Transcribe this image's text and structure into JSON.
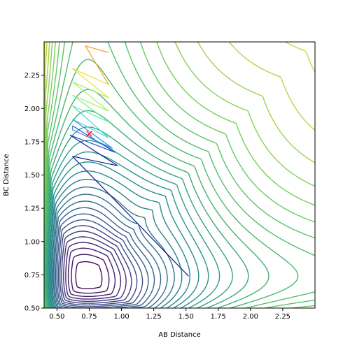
{
  "chart_data": {
    "type": "contour",
    "title": "",
    "xlabel": "AB Distance",
    "ylabel": "BC Distance",
    "xlim": [
      0.4,
      2.5
    ],
    "ylim": [
      0.5,
      2.5
    ],
    "x_ticks": [
      "0.50",
      "0.75",
      "1.00",
      "1.25",
      "1.50",
      "1.75",
      "2.00",
      "2.25"
    ],
    "x_tick_values": [
      0.5,
      0.75,
      1.0,
      1.25,
      1.5,
      1.75,
      2.0,
      2.25
    ],
    "y_ticks": [
      "0.50",
      "0.75",
      "1.00",
      "1.25",
      "1.50",
      "1.75",
      "2.00",
      "2.25"
    ],
    "y_tick_values": [
      0.5,
      0.75,
      1.0,
      1.25,
      1.5,
      1.75,
      2.0,
      2.25
    ],
    "grid": false,
    "colormap": [
      "#440154",
      "#3b528b",
      "#21918c",
      "#5ec962",
      "#fde725"
    ],
    "contour_levels": 32,
    "surface": {
      "model": "morse-like potential, minimum valley near AB≈1.5, BC≈0.74",
      "saddle_region": [
        0.72,
        1.4
      ]
    },
    "trajectory": {
      "points": [
        [
          1.52,
          0.74
        ],
        [
          0.62,
          1.64
        ],
        [
          0.97,
          1.57
        ],
        [
          0.6,
          1.8
        ],
        [
          0.95,
          1.67
        ],
        [
          0.62,
          1.87
        ],
        [
          0.62,
          1.84
        ],
        [
          0.93,
          1.7
        ],
        [
          0.62,
          1.92
        ],
        [
          0.9,
          1.78
        ],
        [
          0.62,
          2.02
        ],
        [
          0.9,
          1.9
        ],
        [
          0.62,
          2.1
        ],
        [
          0.9,
          1.98
        ],
        [
          0.62,
          2.2
        ],
        [
          0.9,
          2.08
        ],
        [
          0.62,
          2.3
        ],
        [
          0.9,
          2.18
        ],
        [
          0.72,
          2.47
        ],
        [
          0.9,
          2.42
        ]
      ],
      "marker": {
        "x": 0.75,
        "y": 1.81,
        "color": "#ff0000",
        "symbol": "x"
      }
    }
  }
}
